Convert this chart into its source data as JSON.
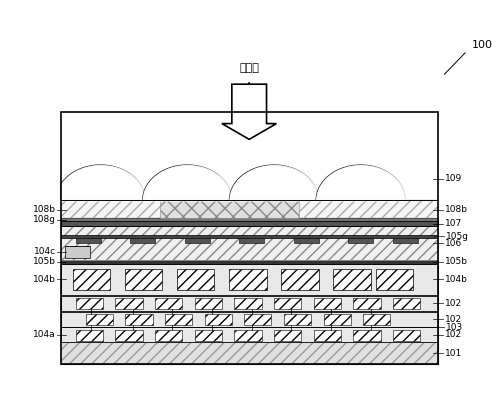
{
  "title": "",
  "bg_color": "#ffffff",
  "diagram_label": "100",
  "incident_light_label": "入射光",
  "left_labels": [
    "108b",
    "108g",
    "104c",
    "105b",
    "104b",
    "104a"
  ],
  "right_labels": [
    "109",
    "108b",
    "107",
    "106",
    "105g",
    "105b",
    "104b",
    "102",
    "102",
    "103",
    "102",
    "101"
  ],
  "layer_colors": {
    "101": "#d0d0d0",
    "102_bottom": "#e8e8e8",
    "103": "#f5f5f5",
    "107": "#888888",
    "108b_hatch": "cross",
    "106_hatch": "diagonal"
  }
}
